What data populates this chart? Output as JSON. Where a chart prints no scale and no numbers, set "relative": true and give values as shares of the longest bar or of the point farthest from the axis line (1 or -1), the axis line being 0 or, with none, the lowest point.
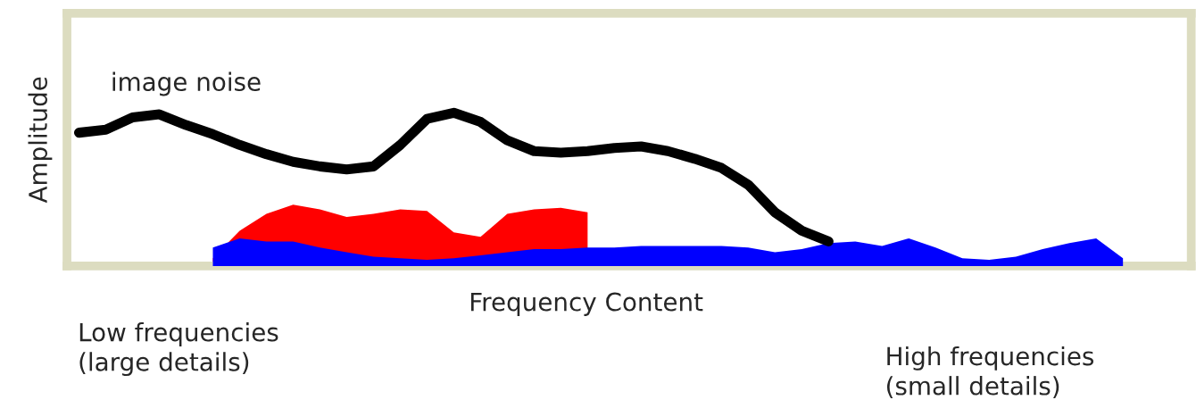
{
  "chart_data": {
    "type": "area",
    "relative": true,
    "xlabel": "Frequency Content",
    "ylabel": "Amplitude",
    "annotations": [
      "Low frequencies\n(large details)",
      "High frequencies\n(small details)"
    ],
    "categories": [
      null,
      null,
      null,
      null,
      null,
      null,
      null,
      null,
      null,
      null,
      null,
      null,
      null,
      null,
      null,
      null,
      null,
      null,
      null,
      null,
      null,
      null,
      null,
      null,
      null,
      null,
      null,
      null,
      null,
      null,
      null,
      null,
      null,
      null,
      null,
      null,
      null,
      null,
      null,
      null
    ],
    "series": [
      {
        "color": "#ff0000",
        "values": [
          null,
          null,
          null,
          null,
          null,
          0.05,
          0.23,
          0.34,
          0.4,
          0.37,
          0.32,
          0.34,
          0.37,
          0.36,
          0.22,
          0.19,
          0.34,
          0.37,
          0.38,
          0.35,
          null,
          null,
          null,
          null,
          null,
          null,
          null,
          null,
          null,
          null,
          null,
          null,
          null,
          null,
          null,
          null,
          null,
          null,
          null,
          null
        ]
      },
      {
        "color": "#0000ff",
        "values": [
          null,
          null,
          null,
          null,
          null,
          0.12,
          0.18,
          0.16,
          0.16,
          0.12,
          0.09,
          0.06,
          0.05,
          0.04,
          0.05,
          0.07,
          0.09,
          0.11,
          0.11,
          0.12,
          0.12,
          0.13,
          0.13,
          0.13,
          0.13,
          0.12,
          0.09,
          0.11,
          0.15,
          0.16,
          0.13,
          0.18,
          0.12,
          0.05,
          0.04,
          0.06,
          0.11,
          0.15,
          0.18,
          0.05
        ]
      },
      {
        "type": "line",
        "name": "image noise",
        "color": "#000000",
        "values": [
          0.87,
          0.89,
          0.97,
          0.99,
          0.92,
          0.86,
          0.79,
          0.73,
          0.68,
          0.65,
          0.63,
          0.65,
          0.79,
          0.96,
          1,
          0.94,
          0.82,
          0.75,
          0.74,
          0.75,
          0.77,
          0.78,
          0.75,
          0.7,
          0.64,
          0.53,
          0.35,
          0.23,
          0.16,
          null,
          null,
          null,
          null,
          null,
          null,
          null,
          null,
          null,
          null,
          null
        ]
      }
    ]
  }
}
